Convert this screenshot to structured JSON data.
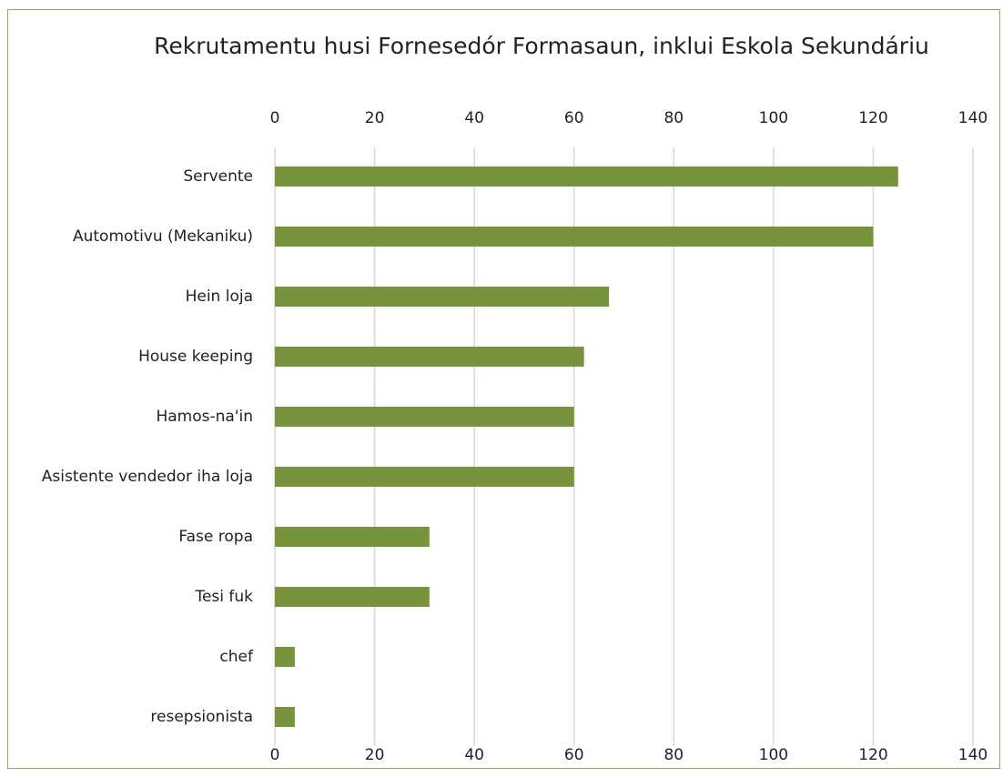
{
  "chart_data": {
    "type": "barh",
    "title": "Rekrutamentu husi Fornesedór Formasaun, inklui Eskola Sekundáriu",
    "categories": [
      "Servente",
      "Automotivu (Mekaniku)",
      "Hein loja",
      "House keeping",
      "Hamos-na'in",
      "Asistente vendedor iha loja",
      "Fase ropa",
      "Tesi fuk",
      "chef",
      "resepsionista"
    ],
    "values": [
      125,
      120,
      67,
      62,
      60,
      60,
      31,
      31,
      4,
      4
    ],
    "color": "#77933c",
    "xlim": [
      0,
      140
    ],
    "xticks": [
      0,
      20,
      40,
      60,
      80,
      100,
      120,
      140
    ],
    "grid": true
  }
}
